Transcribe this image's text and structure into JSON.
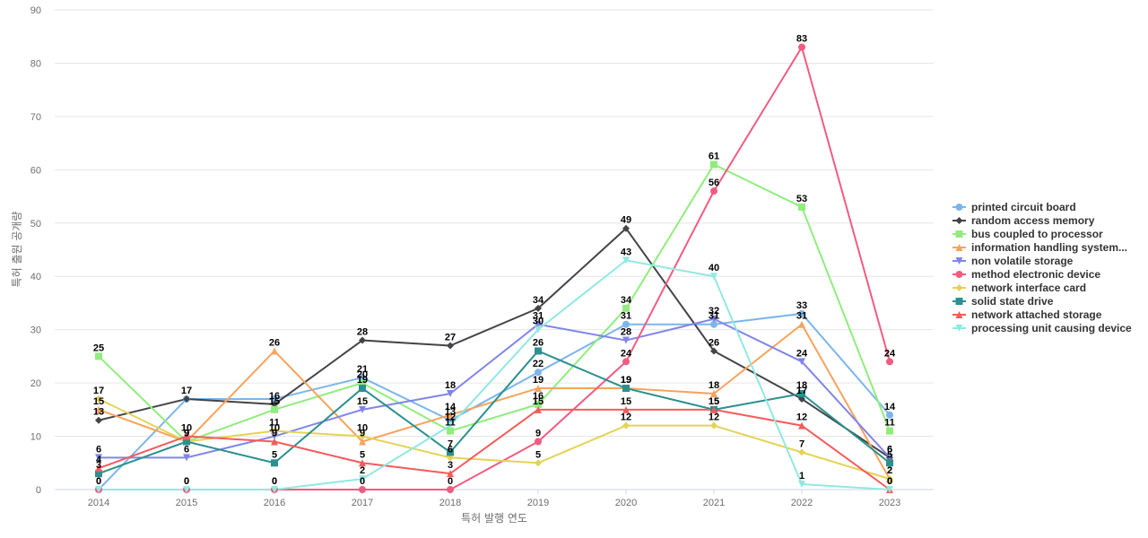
{
  "chart_data": {
    "type": "line",
    "title": "",
    "xlabel": "특허 발행 연도",
    "ylabel": "특허 출원 공개량",
    "ylim": [
      0,
      90
    ],
    "yticks": [
      0,
      10,
      20,
      30,
      40,
      50,
      60,
      70,
      80,
      90
    ],
    "grid": true,
    "legend_position": "right",
    "categories": [
      "2014",
      "2015",
      "2016",
      "2017",
      "2018",
      "2019",
      "2020",
      "2021",
      "2022",
      "2023"
    ],
    "series": [
      {
        "name": "printed circuit board",
        "color": "#7cb5ec",
        "marker": "circle",
        "values": [
          0,
          17,
          17,
          21,
          13,
          22,
          31,
          31,
          33,
          14
        ]
      },
      {
        "name": "random access memory",
        "color": "#434348",
        "marker": "diamond",
        "values": [
          13,
          17,
          16,
          28,
          27,
          34,
          49,
          26,
          17,
          6
        ]
      },
      {
        "name": "bus coupled to processor",
        "color": "#90ed7d",
        "marker": "square",
        "values": [
          25,
          9,
          15,
          20,
          11,
          16,
          34,
          61,
          53,
          11
        ]
      },
      {
        "name": "information handling system...",
        "color": "#f7a35c",
        "marker": "triangle",
        "values": [
          15,
          9,
          26,
          9,
          14,
          19,
          19,
          18,
          31,
          2
        ]
      },
      {
        "name": "non volatile storage",
        "color": "#8085e9",
        "marker": "triangle-down",
        "values": [
          6,
          6,
          10,
          15,
          18,
          31,
          28,
          32,
          24,
          6
        ]
      },
      {
        "name": "method electronic device",
        "color": "#f15c80",
        "marker": "circle",
        "values": [
          0,
          0,
          0,
          0,
          0,
          9,
          24,
          56,
          83,
          24
        ]
      },
      {
        "name": "network interface card",
        "color": "#e4d354",
        "marker": "diamond",
        "values": [
          17,
          9,
          11,
          10,
          6,
          5,
          12,
          12,
          7,
          2
        ]
      },
      {
        "name": "solid state drive",
        "color": "#2b908f",
        "marker": "square",
        "values": [
          3,
          9,
          5,
          19,
          7,
          26,
          19,
          15,
          18,
          5
        ]
      },
      {
        "name": "network attached storage",
        "color": "#f45b5b",
        "marker": "triangle",
        "values": [
          4,
          10,
          9,
          5,
          3,
          15,
          15,
          15,
          12,
          0
        ]
      },
      {
        "name": "processing unit causing device",
        "color": "#91e8e1",
        "marker": "triangle-down",
        "values": [
          0,
          0,
          0,
          2,
          12,
          30,
          43,
          40,
          1,
          0
        ]
      }
    ],
    "labels_shown": {
      "printed circuit board": [
        false,
        false,
        false,
        true,
        true,
        true,
        true,
        true,
        true,
        true
      ],
      "random access memory": [
        true,
        true,
        true,
        true,
        true,
        true,
        true,
        true,
        true,
        true
      ],
      "bus coupled to processor": [
        true,
        true,
        true,
        true,
        true,
        true,
        true,
        true,
        true,
        true
      ],
      "information handling system...": [
        true,
        true,
        true,
        true,
        true,
        true,
        true,
        true,
        true,
        true
      ],
      "non volatile storage": [
        true,
        true,
        true,
        true,
        true,
        true,
        true,
        true,
        true,
        true
      ],
      "method electronic device": [
        true,
        true,
        true,
        true,
        true,
        true,
        true,
        true,
        true,
        true
      ],
      "network interface card": [
        true,
        true,
        true,
        true,
        true,
        true,
        true,
        true,
        true,
        true
      ],
      "solid state drive": [
        true,
        true,
        true,
        true,
        true,
        true,
        true,
        true,
        true,
        true
      ],
      "network attached storage": [
        true,
        true,
        true,
        true,
        true,
        true,
        true,
        true,
        true,
        true
      ],
      "processing unit causing device": [
        true,
        true,
        true,
        true,
        true,
        true,
        true,
        true,
        true,
        true
      ]
    }
  }
}
